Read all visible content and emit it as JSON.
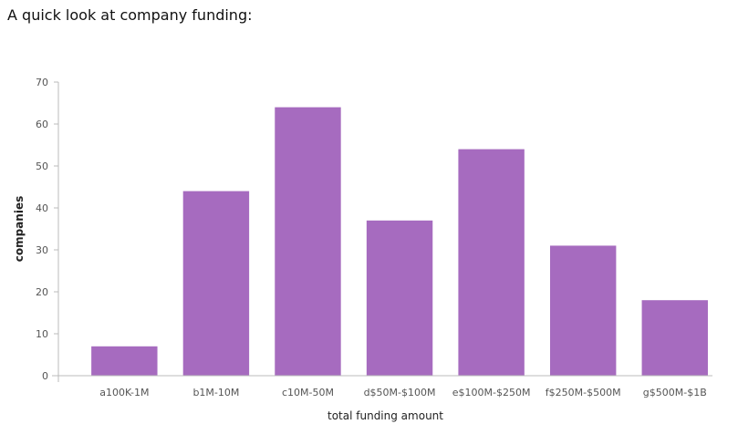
{
  "page": {
    "title": "A quick look at company funding:"
  },
  "chart_data": {
    "type": "bar",
    "categories": [
      "a100K-1M",
      "b1M-10M",
      "c10M-50M",
      "d$50M-$100M",
      "e$100M-$250M",
      "f$250M-$500M",
      "g$500M-$1B"
    ],
    "values": [
      7,
      44,
      64,
      37,
      54,
      31,
      18
    ],
    "xlabel": "total funding amount",
    "ylabel": "companies",
    "ylim": [
      0,
      70
    ],
    "yticks": [
      0,
      10,
      20,
      30,
      40,
      50,
      60,
      70
    ],
    "grid": false,
    "colors": {
      "bar": "#a66bbf",
      "axis": "#bbbbbb"
    }
  }
}
